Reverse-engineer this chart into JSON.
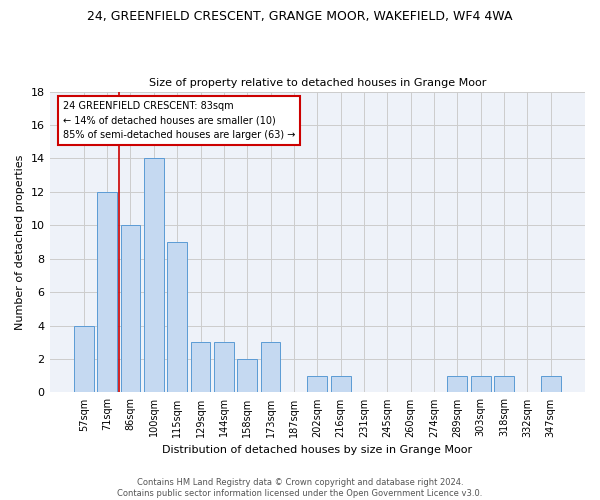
{
  "title": "24, GREENFIELD CRESCENT, GRANGE MOOR, WAKEFIELD, WF4 4WA",
  "subtitle": "Size of property relative to detached houses in Grange Moor",
  "xlabel": "Distribution of detached houses by size in Grange Moor",
  "ylabel": "Number of detached properties",
  "bar_labels": [
    "57sqm",
    "71sqm",
    "86sqm",
    "100sqm",
    "115sqm",
    "129sqm",
    "144sqm",
    "158sqm",
    "173sqm",
    "187sqm",
    "202sqm",
    "216sqm",
    "231sqm",
    "245sqm",
    "260sqm",
    "274sqm",
    "289sqm",
    "303sqm",
    "318sqm",
    "332sqm",
    "347sqm"
  ],
  "bar_values": [
    4,
    12,
    10,
    14,
    9,
    3,
    3,
    2,
    3,
    0,
    1,
    1,
    0,
    0,
    0,
    0,
    1,
    1,
    1,
    0,
    1
  ],
  "bar_color": "#c5d9f1",
  "bar_edge_color": "#5b9bd5",
  "grid_color": "#cccccc",
  "annotation_box_text": "24 GREENFIELD CRESCENT: 83sqm\n← 14% of detached houses are smaller (10)\n85% of semi-detached houses are larger (63) →",
  "annotation_line_color": "#cc0000",
  "annotation_box_edge_color": "#cc0000",
  "ylim": [
    0,
    18
  ],
  "yticks": [
    0,
    2,
    4,
    6,
    8,
    10,
    12,
    14,
    16,
    18
  ],
  "footer_line1": "Contains HM Land Registry data © Crown copyright and database right 2024.",
  "footer_line2": "Contains public sector information licensed under the Open Government Licence v3.0.",
  "bg_color": "#eef2f9",
  "title_fontsize": 9,
  "subtitle_fontsize": 8,
  "ylabel_fontsize": 8,
  "xlabel_fontsize": 8,
  "ytick_fontsize": 8,
  "xtick_fontsize": 7
}
